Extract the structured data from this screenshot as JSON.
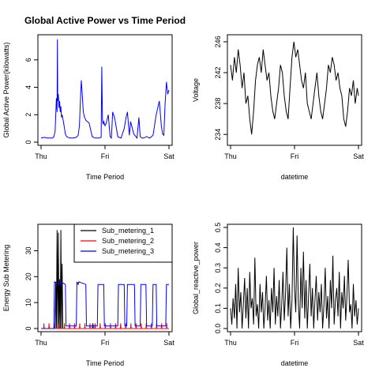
{
  "chart_data": [
    {
      "id": "gap",
      "type": "line",
      "title": "Global Active Power vs Time Period",
      "xlabel": "Time Period",
      "ylabel": "Global Active Power(kilowatts)",
      "x_ticks": [
        {
          "x": 0,
          "label": "Thu"
        },
        {
          "x": 1,
          "label": "Fri"
        },
        {
          "x": 2,
          "label": "Sat"
        }
      ],
      "y_ticks": [
        0,
        2,
        4,
        6
      ],
      "xlim": [
        0,
        2
      ],
      "ylim": [
        0,
        7.6
      ],
      "series": [
        {
          "color": "#0000ff",
          "x": [
            0,
            0.05,
            0.1,
            0.18,
            0.2,
            0.22,
            0.23,
            0.24,
            0.25,
            0.255,
            0.26,
            0.27,
            0.28,
            0.29,
            0.3,
            0.31,
            0.32,
            0.33,
            0.35,
            0.38,
            0.4,
            0.45,
            0.5,
            0.55,
            0.58,
            0.6,
            0.62,
            0.63,
            0.64,
            0.66,
            0.68,
            0.7,
            0.75,
            0.8,
            0.85,
            0.9,
            0.94,
            0.95,
            0.96,
            0.97,
            0.98,
            1.0,
            1.02,
            1.05,
            1.08,
            1.1,
            1.12,
            1.15,
            1.2,
            1.25,
            1.3,
            1.33,
            1.35,
            1.38,
            1.4,
            1.45,
            1.5,
            1.53,
            1.55,
            1.58,
            1.6,
            1.65,
            1.7,
            1.75,
            1.8,
            1.85,
            1.88,
            1.9,
            1.92,
            1.94,
            1.96,
            1.98,
            2.0
          ],
          "y": [
            0.3,
            0.35,
            0.3,
            0.3,
            0.4,
            0.8,
            2.0,
            3.2,
            2.2,
            7.5,
            3.0,
            3.5,
            2.5,
            3.0,
            2.2,
            2.6,
            1.8,
            2.0,
            1.5,
            0.6,
            0.4,
            0.3,
            0.3,
            0.35,
            0.5,
            1.2,
            3.6,
            4.5,
            3.8,
            2.2,
            1.8,
            1.6,
            1.4,
            0.4,
            0.3,
            0.3,
            0.35,
            5.5,
            1.6,
            1.3,
            1.5,
            1.2,
            1.4,
            2.0,
            0.4,
            0.3,
            2.2,
            1.8,
            0.4,
            0.3,
            1.0,
            1.8,
            2.2,
            0.5,
            1.5,
            0.6,
            0.3,
            1.8,
            0.4,
            0.3,
            0.3,
            0.4,
            0.3,
            0.5,
            2.0,
            3.0,
            1.2,
            0.6,
            0.5,
            2.8,
            4.4,
            3.5,
            3.8
          ]
        }
      ]
    },
    {
      "id": "voltage",
      "type": "line",
      "title": "",
      "xlabel": "datetime",
      "ylabel": "Voltage",
      "x_ticks": [
        {
          "x": 0,
          "label": "Thu"
        },
        {
          "x": 1,
          "label": "Fri"
        },
        {
          "x": 2,
          "label": "Sat"
        }
      ],
      "y_ticks": [
        234,
        238,
        242,
        246
      ],
      "xlim": [
        0,
        2
      ],
      "ylim": [
        233,
        246.5
      ],
      "series": [
        {
          "color": "#000000",
          "x": [
            0,
            0.03,
            0.06,
            0.09,
            0.12,
            0.15,
            0.18,
            0.21,
            0.24,
            0.27,
            0.3,
            0.33,
            0.36,
            0.39,
            0.42,
            0.45,
            0.48,
            0.51,
            0.54,
            0.57,
            0.6,
            0.63,
            0.66,
            0.69,
            0.72,
            0.75,
            0.78,
            0.81,
            0.84,
            0.87,
            0.9,
            0.93,
            0.96,
            0.99,
            1.02,
            1.05,
            1.08,
            1.11,
            1.14,
            1.17,
            1.2,
            1.23,
            1.26,
            1.29,
            1.32,
            1.35,
            1.38,
            1.41,
            1.44,
            1.47,
            1.5,
            1.53,
            1.56,
            1.59,
            1.62,
            1.65,
            1.68,
            1.71,
            1.74,
            1.77,
            1.8,
            1.83,
            1.86,
            1.89,
            1.92,
            1.95,
            1.98,
            2.0
          ],
          "y": [
            243,
            241,
            244,
            242,
            245,
            243,
            240,
            242,
            238,
            239,
            236,
            234,
            237,
            241,
            243,
            244,
            242,
            245,
            243,
            241,
            242,
            239,
            237,
            236,
            238,
            240,
            243,
            242,
            239,
            237,
            236,
            240,
            244,
            246,
            244,
            245,
            243,
            241,
            240,
            242,
            238,
            237,
            236,
            238,
            240,
            242,
            239,
            237,
            236,
            238,
            240,
            243,
            242,
            244,
            243,
            241,
            242,
            240,
            239,
            236,
            235,
            237,
            240,
            239,
            241,
            238,
            240,
            239
          ]
        }
      ]
    },
    {
      "id": "submetering",
      "type": "line",
      "title": "",
      "xlabel": "Time Period",
      "ylabel": "Energy Sub Metering",
      "x_ticks": [
        {
          "x": 0,
          "label": "Thu"
        },
        {
          "x": 1,
          "label": "Fri"
        },
        {
          "x": 2,
          "label": "Sat"
        }
      ],
      "y_ticks": [
        0,
        10,
        20,
        30
      ],
      "xlim": [
        0,
        2
      ],
      "ylim": [
        0,
        39
      ],
      "legend_position": "top-right",
      "series": [
        {
          "name": "Sub_metering_1",
          "color": "#000000",
          "x": [
            0,
            0.2,
            0.22,
            0.23,
            0.24,
            0.25,
            0.26,
            0.27,
            0.28,
            0.29,
            0.3,
            0.31,
            0.32,
            0.33,
            0.34,
            0.35,
            0.38,
            0.4,
            0.8,
            0.81,
            0.82,
            0.83,
            1.0,
            2.0
          ],
          "y": [
            0,
            0,
            0,
            18,
            0,
            38,
            0,
            37,
            0,
            19,
            0,
            38,
            0,
            25,
            0,
            0,
            0,
            0,
            0,
            2,
            0,
            0,
            0,
            0
          ]
        },
        {
          "name": "Sub_metering_2",
          "color": "#ff0000",
          "x": [
            0,
            0.04,
            0.045,
            0.05,
            0.12,
            0.125,
            0.13,
            0.2,
            0.205,
            0.21,
            0.28,
            0.285,
            0.29,
            0.36,
            0.365,
            0.37,
            0.44,
            0.445,
            0.45,
            0.52,
            0.525,
            0.53,
            0.6,
            0.605,
            0.61,
            0.68,
            0.685,
            0.69,
            0.76,
            0.765,
            0.77,
            0.84,
            0.845,
            0.85,
            0.92,
            0.925,
            0.93,
            1.0,
            1.005,
            1.01,
            1.08,
            1.085,
            1.09,
            1.16,
            1.165,
            1.17,
            1.24,
            1.245,
            1.25,
            1.32,
            1.325,
            1.33,
            1.4,
            1.405,
            1.41,
            1.48,
            1.485,
            1.49,
            1.56,
            1.565,
            1.57,
            1.64,
            1.645,
            1.65,
            1.72,
            1.725,
            1.73,
            1.8,
            1.805,
            1.81,
            1.88,
            1.885,
            1.89,
            1.96,
            1.965,
            1.97,
            2.0
          ],
          "y": [
            0,
            0,
            2,
            0,
            0,
            2,
            0,
            0,
            2,
            0,
            0,
            2,
            0,
            0,
            2,
            0,
            0,
            2,
            0,
            0,
            2,
            0,
            0,
            2,
            0,
            0,
            2,
            0,
            0,
            2,
            0,
            0,
            2,
            0,
            0,
            2,
            0,
            0,
            2,
            0,
            0,
            2,
            0,
            0,
            2,
            0,
            0,
            2,
            0,
            0,
            2,
            0,
            0,
            2,
            0,
            0,
            2,
            0,
            0,
            2,
            0,
            0,
            2,
            0,
            0,
            2,
            0,
            0,
            2,
            0,
            0,
            2,
            0,
            0,
            2,
            0,
            0
          ]
        },
        {
          "name": "Sub_metering_3",
          "color": "#0000ff",
          "x": [
            0,
            0.2,
            0.21,
            0.3,
            0.31,
            0.38,
            0.39,
            0.55,
            0.56,
            0.58,
            0.59,
            0.7,
            0.71,
            0.88,
            0.89,
            0.98,
            0.99,
            1.2,
            1.21,
            1.3,
            1.31,
            1.34,
            1.35,
            1.46,
            1.47,
            1.55,
            1.56,
            1.64,
            1.65,
            1.74,
            1.75,
            1.8,
            1.81,
            1.95,
            1.96,
            2.0
          ],
          "y": [
            0,
            0,
            18,
            17,
            18,
            17,
            1,
            1,
            18,
            17,
            18,
            17,
            1,
            1,
            17,
            17,
            1,
            1,
            17,
            17,
            1,
            1,
            17,
            17,
            1,
            1,
            17,
            17,
            1,
            1,
            17,
            17,
            1,
            1,
            17,
            17
          ]
        }
      ]
    },
    {
      "id": "reactive",
      "type": "line",
      "title": "",
      "xlabel": "datetime",
      "ylabel": "Global_reactive_power",
      "x_ticks": [
        {
          "x": 0,
          "label": "Thu"
        },
        {
          "x": 1,
          "label": "Fri"
        },
        {
          "x": 2,
          "label": "Sat"
        }
      ],
      "y_ticks": [
        0.0,
        0.1,
        0.2,
        0.3,
        0.4,
        0.5
      ],
      "y_tick_labels": [
        "0.0",
        "0.1",
        "0.2",
        "0.3",
        "0.4",
        "0.5"
      ],
      "xlim": [
        0,
        2
      ],
      "ylim": [
        0,
        0.5
      ],
      "series": [
        {
          "color": "#000000",
          "x": [
            0,
            0.02,
            0.04,
            0.06,
            0.08,
            0.1,
            0.12,
            0.14,
            0.16,
            0.18,
            0.2,
            0.22,
            0.24,
            0.26,
            0.28,
            0.3,
            0.32,
            0.34,
            0.36,
            0.38,
            0.4,
            0.42,
            0.44,
            0.46,
            0.48,
            0.5,
            0.52,
            0.54,
            0.56,
            0.58,
            0.6,
            0.62,
            0.64,
            0.66,
            0.68,
            0.7,
            0.72,
            0.74,
            0.76,
            0.78,
            0.8,
            0.82,
            0.84,
            0.86,
            0.88,
            0.9,
            0.92,
            0.94,
            0.96,
            0.98,
            1.0,
            1.02,
            1.04,
            1.06,
            1.08,
            1.1,
            1.12,
            1.14,
            1.16,
            1.18,
            1.2,
            1.22,
            1.24,
            1.26,
            1.28,
            1.3,
            1.32,
            1.34,
            1.36,
            1.38,
            1.4,
            1.42,
            1.44,
            1.46,
            1.48,
            1.5,
            1.52,
            1.54,
            1.56,
            1.58,
            1.6,
            1.62,
            1.64,
            1.66,
            1.68,
            1.7,
            1.72,
            1.74,
            1.76,
            1.78,
            1.8,
            1.82,
            1.84,
            1.86,
            1.88,
            1.9,
            1.92,
            1.94,
            1.96,
            1.98,
            2.0
          ],
          "y": [
            0.1,
            0.02,
            0.15,
            0.05,
            0.22,
            0.0,
            0.3,
            0.08,
            0.18,
            0.0,
            0.12,
            0.25,
            0.05,
            0.2,
            0.0,
            0.28,
            0.1,
            0.15,
            0.02,
            0.35,
            0.06,
            0.12,
            0.0,
            0.22,
            0.08,
            0.18,
            0.0,
            0.1,
            0.26,
            0.04,
            0.14,
            0.0,
            0.2,
            0.08,
            0.3,
            0.02,
            0.16,
            0.06,
            0.24,
            0.0,
            0.12,
            0.28,
            0.04,
            0.18,
            0.4,
            0.06,
            0.22,
            0.0,
            0.14,
            0.5,
            0.2,
            0.08,
            0.46,
            0.12,
            0.0,
            0.3,
            0.1,
            0.38,
            0.05,
            0.24,
            0.0,
            0.16,
            0.32,
            0.06,
            0.2,
            0.0,
            0.14,
            0.26,
            0.04,
            0.18,
            0.08,
            0.22,
            0.0,
            0.12,
            0.3,
            0.05,
            0.16,
            0.0,
            0.24,
            0.1,
            0.36,
            0.02,
            0.14,
            0.2,
            0.06,
            0.28,
            0.0,
            0.18,
            0.1,
            0.26,
            0.04,
            0.16,
            0.34,
            0.08,
            0.12,
            0.0,
            0.22,
            0.06,
            0.14,
            0.02,
            0.1
          ]
        }
      ]
    }
  ]
}
